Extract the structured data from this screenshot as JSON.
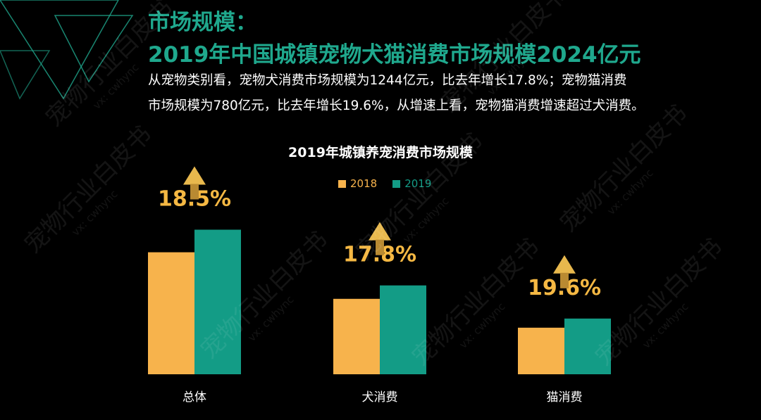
{
  "header": {
    "section_label": "市场规模：",
    "headline": "2019年中国城镇宠物犬猫消费市场规模2024亿元",
    "description_line1": "从宠物类别看，宠物犬消费市场规模为1244亿元，比去年增长17.8%；宠物猫消费",
    "description_line2": "市场规模为780亿元，比去年增长19.6%，从增速上看，宠物猫消费增速超过犬消费。"
  },
  "watermark": {
    "text": "宠物行业白皮书",
    "sub": "vx: cwhync"
  },
  "colors": {
    "accent": "#1fa88d",
    "series_2018": "#f7b34c",
    "series_2019": "#139c86",
    "growth_label": "#f5b843"
  },
  "chart_data": {
    "type": "bar",
    "title": "2019年城镇养宠消费市场规模",
    "categories": [
      "总体",
      "犬消费",
      "猫消费"
    ],
    "series": [
      {
        "name": "2018",
        "values": [
          1708,
          1056,
          652
        ]
      },
      {
        "name": "2019",
        "values": [
          2024,
          1244,
          780
        ]
      }
    ],
    "growth_labels": [
      "18.5%",
      "17.8%",
      "19.6%"
    ],
    "ylim": [
      0,
      2600
    ],
    "xlabel": "",
    "ylabel": "",
    "grid": false,
    "legend_position": "top-center"
  }
}
